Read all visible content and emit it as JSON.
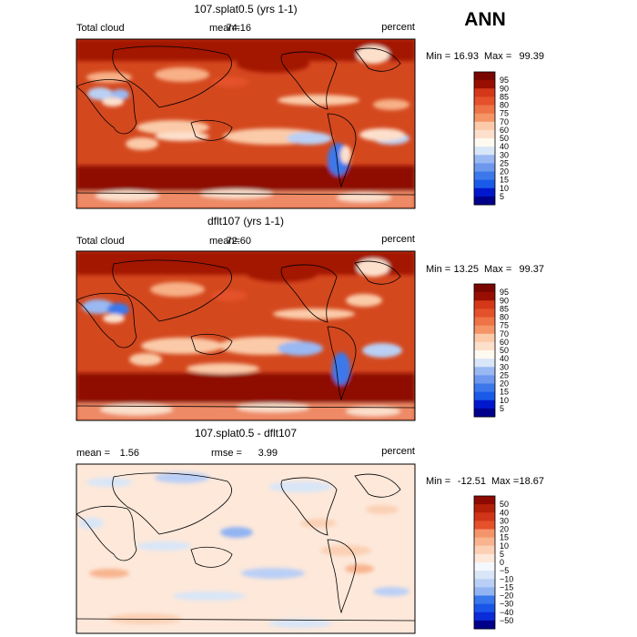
{
  "page": {
    "season_label": "ANN"
  },
  "colors": {
    "scale_seq": [
      "#00008b",
      "#0018cd",
      "#0a3fe6",
      "#1a5ae8",
      "#3c78ea",
      "#6e98ee",
      "#9ab8f2",
      "#bad0f4",
      "#d8e6f8",
      "#fffaf0",
      "#fde0cc",
      "#fbcaa8",
      "#f8b087",
      "#f49467",
      "#ee7347",
      "#e4512b",
      "#d43818",
      "#bb240a",
      "#980f02",
      "#7a0600"
    ],
    "scale_diff": [
      "#00008b",
      "#0a2bd8",
      "#1a55e8",
      "#3a76ec",
      "#6696f0",
      "#92b4f3",
      "#bacff6",
      "#d8e6f8",
      "#f5f8fd",
      "#fde8da",
      "#fbd0b4",
      "#f8b48e",
      "#f4946a",
      "#ee7347",
      "#e4512b",
      "#d0351a",
      "#b41f08",
      "#8e0a00"
    ]
  },
  "chart_data": [
    {
      "type": "heatmap",
      "title": "107.splat0.5 (yrs 1-1)",
      "left_label": "Total cloud",
      "mean_label": "mean=",
      "mean_value": "74.16",
      "units": "percent",
      "min_label": "Min =",
      "min_value": "16.93",
      "max_label": "Max =",
      "max_value": "99.39",
      "range": [
        16.93,
        99.39
      ],
      "colorbar_levels": [
        "95",
        "90",
        "85",
        "80",
        "75",
        "70",
        "60",
        "50",
        "40",
        "30",
        "25",
        "20",
        "15",
        "10",
        "5"
      ]
    },
    {
      "type": "heatmap",
      "title": "dflt107 (yrs 1-1)",
      "left_label": "Total cloud",
      "mean_label": "mean=",
      "mean_value": "72.60",
      "units": "percent",
      "min_label": "Min =",
      "min_value": "13.25",
      "max_label": "Max =",
      "max_value": "99.37",
      "range": [
        13.25,
        99.37
      ],
      "colorbar_levels": [
        "95",
        "90",
        "85",
        "80",
        "75",
        "70",
        "60",
        "50",
        "40",
        "30",
        "25",
        "20",
        "15",
        "10",
        "5"
      ]
    },
    {
      "type": "heatmap",
      "title": "107.splat0.5 - dflt107",
      "left_label": "mean =",
      "mean_value": "1.56",
      "rmse_label": "rmse =",
      "rmse_value": "3.99",
      "units": "percent",
      "min_label": "Min =",
      "min_value": "-12.51",
      "max_label": "Max =",
      "max_value": "18.67",
      "range": [
        -12.51,
        18.67
      ],
      "colorbar_levels": [
        "50",
        "40",
        "30",
        "20",
        "15",
        "10",
        "5",
        "0",
        "−5",
        "−10",
        "−15",
        "−20",
        "−30",
        "−40",
        "−50"
      ]
    }
  ]
}
